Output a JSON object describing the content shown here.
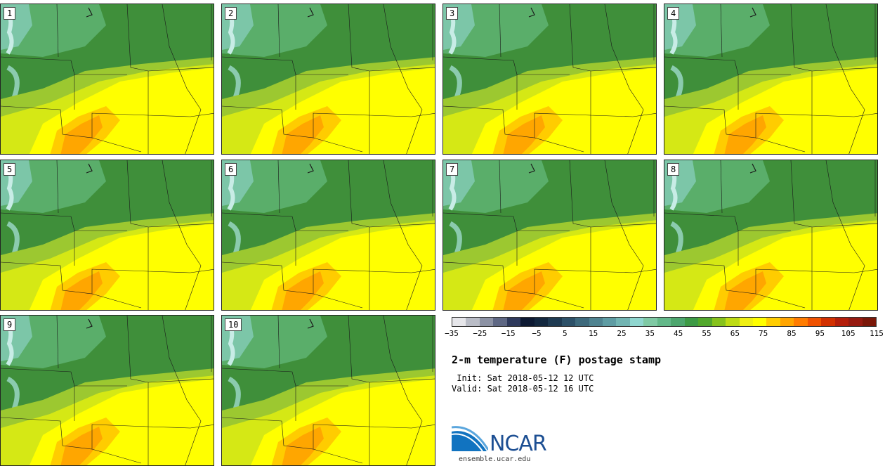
{
  "stamps": [
    {
      "label": "1"
    },
    {
      "label": "2"
    },
    {
      "label": "3"
    },
    {
      "label": "4"
    },
    {
      "label": "5"
    },
    {
      "label": "6"
    },
    {
      "label": "7"
    },
    {
      "label": "8"
    },
    {
      "label": "9"
    },
    {
      "label": "10"
    }
  ],
  "legend": {
    "colors": [
      "#e6e6ea",
      "#b9bcc6",
      "#8c92a4",
      "#5f6884",
      "#2f3a5c",
      "#0d1a33",
      "#13283f",
      "#1f3b52",
      "#2d5168",
      "#3e6a7c",
      "#4f8390",
      "#5e9ca3",
      "#72b5b3",
      "#8fd6cf",
      "#7fc9a4",
      "#63b889",
      "#4da66e",
      "#3d9a45",
      "#52a82c",
      "#86c21c",
      "#bddb13",
      "#f0f013",
      "#ffff00",
      "#ffcd00",
      "#ffa500",
      "#ff7c00",
      "#f05200",
      "#d23000",
      "#b41e0a",
      "#961a10",
      "#7a1708"
    ],
    "ticks": [
      "-35",
      "-25",
      "-15",
      "-5",
      "5",
      "15",
      "25",
      "35",
      "45",
      "55",
      "65",
      "75",
      "85",
      "95",
      "105",
      "115"
    ]
  },
  "title": "2-m temperature (F) postage stamp",
  "init": " Init: Sat 2018-05-12 12 UTC",
  "valid": "Valid: Sat 2018-05-12 16 UTC",
  "logo": {
    "text": "NCAR"
  },
  "url": "ensemble.ucar.edu"
}
